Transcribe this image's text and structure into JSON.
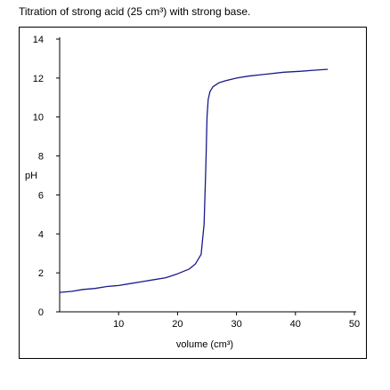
{
  "chart_data": {
    "type": "line",
    "title": "Titration of strong acid (25 cm³) with strong base.",
    "xlabel": "volume (cm³)",
    "ylabel": "pH",
    "xlim": [
      0,
      50
    ],
    "ylim": [
      0,
      14
    ],
    "xticks": [
      10,
      20,
      30,
      40,
      50
    ],
    "yticks": [
      0,
      2,
      4,
      6,
      8,
      10,
      12,
      14
    ],
    "grid": false,
    "line_color": "#1a1a8c",
    "series": [
      {
        "x": [
          0,
          2,
          4,
          6,
          8,
          10,
          12,
          14,
          16,
          18,
          20,
          22,
          23,
          24,
          24.5,
          24.8,
          25,
          25.2,
          25.5,
          26,
          27,
          28,
          30,
          32,
          35,
          38,
          41,
          43,
          45.5
        ],
        "y": [
          1.0,
          1.05,
          1.15,
          1.2,
          1.3,
          1.35,
          1.45,
          1.55,
          1.65,
          1.75,
          1.95,
          2.2,
          2.45,
          2.95,
          4.5,
          7.5,
          10.0,
          10.9,
          11.3,
          11.55,
          11.75,
          11.85,
          12.0,
          12.1,
          12.2,
          12.3,
          12.35,
          12.4,
          12.45
        ]
      }
    ]
  }
}
